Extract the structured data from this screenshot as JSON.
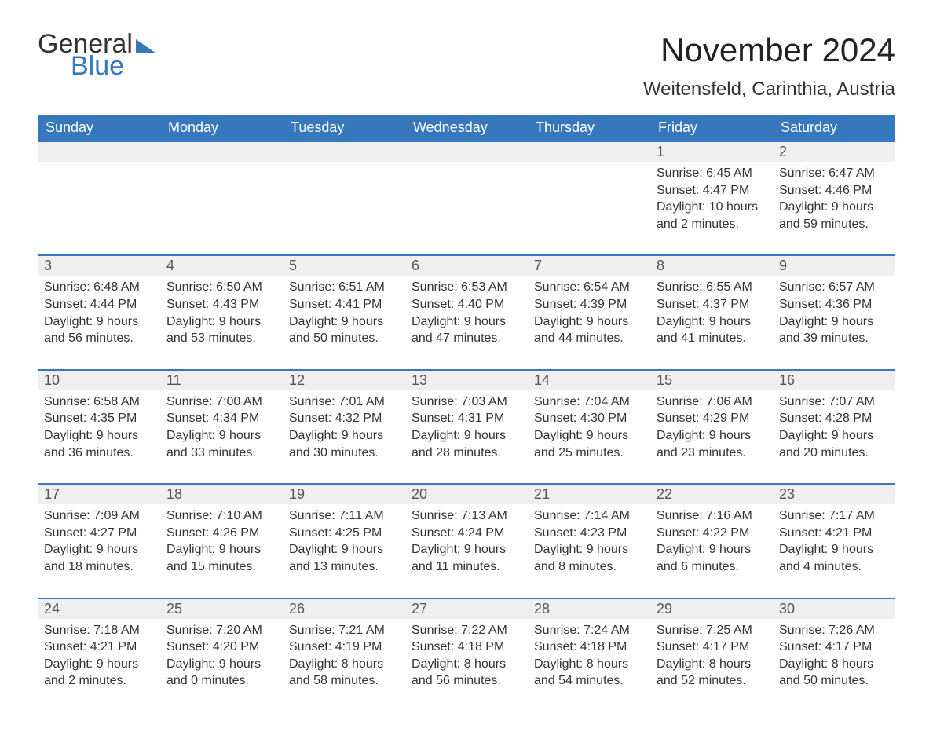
{
  "logo": {
    "word1": "General",
    "word2": "Blue"
  },
  "title": "November 2024",
  "location": "Weitensfeld, Carinthia, Austria",
  "colors": {
    "header_bg": "#3778bd",
    "header_text": "#ffffff",
    "daynum_bg": "#efefef",
    "row_border": "#3778bd",
    "body_text": "#333333",
    "logo_blue": "#3778bd"
  },
  "typography": {
    "title_fontsize": 42,
    "location_fontsize": 24,
    "header_fontsize": 18,
    "daynum_fontsize": 18,
    "detail_fontsize": 16
  },
  "dayNames": [
    "Sunday",
    "Monday",
    "Tuesday",
    "Wednesday",
    "Thursday",
    "Friday",
    "Saturday"
  ],
  "weeks": [
    [
      null,
      null,
      null,
      null,
      null,
      {
        "n": "1",
        "sunrise": "6:45 AM",
        "sunset": "4:47 PM",
        "day_h": "10",
        "day_m": "2"
      },
      {
        "n": "2",
        "sunrise": "6:47 AM",
        "sunset": "4:46 PM",
        "day_h": "9",
        "day_m": "59"
      }
    ],
    [
      {
        "n": "3",
        "sunrise": "6:48 AM",
        "sunset": "4:44 PM",
        "day_h": "9",
        "day_m": "56"
      },
      {
        "n": "4",
        "sunrise": "6:50 AM",
        "sunset": "4:43 PM",
        "day_h": "9",
        "day_m": "53"
      },
      {
        "n": "5",
        "sunrise": "6:51 AM",
        "sunset": "4:41 PM",
        "day_h": "9",
        "day_m": "50"
      },
      {
        "n": "6",
        "sunrise": "6:53 AM",
        "sunset": "4:40 PM",
        "day_h": "9",
        "day_m": "47"
      },
      {
        "n": "7",
        "sunrise": "6:54 AM",
        "sunset": "4:39 PM",
        "day_h": "9",
        "day_m": "44"
      },
      {
        "n": "8",
        "sunrise": "6:55 AM",
        "sunset": "4:37 PM",
        "day_h": "9",
        "day_m": "41"
      },
      {
        "n": "9",
        "sunrise": "6:57 AM",
        "sunset": "4:36 PM",
        "day_h": "9",
        "day_m": "39"
      }
    ],
    [
      {
        "n": "10",
        "sunrise": "6:58 AM",
        "sunset": "4:35 PM",
        "day_h": "9",
        "day_m": "36"
      },
      {
        "n": "11",
        "sunrise": "7:00 AM",
        "sunset": "4:34 PM",
        "day_h": "9",
        "day_m": "33"
      },
      {
        "n": "12",
        "sunrise": "7:01 AM",
        "sunset": "4:32 PM",
        "day_h": "9",
        "day_m": "30"
      },
      {
        "n": "13",
        "sunrise": "7:03 AM",
        "sunset": "4:31 PM",
        "day_h": "9",
        "day_m": "28"
      },
      {
        "n": "14",
        "sunrise": "7:04 AM",
        "sunset": "4:30 PM",
        "day_h": "9",
        "day_m": "25"
      },
      {
        "n": "15",
        "sunrise": "7:06 AM",
        "sunset": "4:29 PM",
        "day_h": "9",
        "day_m": "23"
      },
      {
        "n": "16",
        "sunrise": "7:07 AM",
        "sunset": "4:28 PM",
        "day_h": "9",
        "day_m": "20"
      }
    ],
    [
      {
        "n": "17",
        "sunrise": "7:09 AM",
        "sunset": "4:27 PM",
        "day_h": "9",
        "day_m": "18"
      },
      {
        "n": "18",
        "sunrise": "7:10 AM",
        "sunset": "4:26 PM",
        "day_h": "9",
        "day_m": "15"
      },
      {
        "n": "19",
        "sunrise": "7:11 AM",
        "sunset": "4:25 PM",
        "day_h": "9",
        "day_m": "13"
      },
      {
        "n": "20",
        "sunrise": "7:13 AM",
        "sunset": "4:24 PM",
        "day_h": "9",
        "day_m": "11"
      },
      {
        "n": "21",
        "sunrise": "7:14 AM",
        "sunset": "4:23 PM",
        "day_h": "9",
        "day_m": "8"
      },
      {
        "n": "22",
        "sunrise": "7:16 AM",
        "sunset": "4:22 PM",
        "day_h": "9",
        "day_m": "6"
      },
      {
        "n": "23",
        "sunrise": "7:17 AM",
        "sunset": "4:21 PM",
        "day_h": "9",
        "day_m": "4"
      }
    ],
    [
      {
        "n": "24",
        "sunrise": "7:18 AM",
        "sunset": "4:21 PM",
        "day_h": "9",
        "day_m": "2"
      },
      {
        "n": "25",
        "sunrise": "7:20 AM",
        "sunset": "4:20 PM",
        "day_h": "9",
        "day_m": "0"
      },
      {
        "n": "26",
        "sunrise": "7:21 AM",
        "sunset": "4:19 PM",
        "day_h": "8",
        "day_m": "58"
      },
      {
        "n": "27",
        "sunrise": "7:22 AM",
        "sunset": "4:18 PM",
        "day_h": "8",
        "day_m": "56"
      },
      {
        "n": "28",
        "sunrise": "7:24 AM",
        "sunset": "4:18 PM",
        "day_h": "8",
        "day_m": "54"
      },
      {
        "n": "29",
        "sunrise": "7:25 AM",
        "sunset": "4:17 PM",
        "day_h": "8",
        "day_m": "52"
      },
      {
        "n": "30",
        "sunrise": "7:26 AM",
        "sunset": "4:17 PM",
        "day_h": "8",
        "day_m": "50"
      }
    ]
  ],
  "labels": {
    "sunrise": "Sunrise:",
    "sunset": "Sunset:",
    "daylight": "Daylight:",
    "hours": "hours",
    "and": "and",
    "minutes": "minutes."
  }
}
